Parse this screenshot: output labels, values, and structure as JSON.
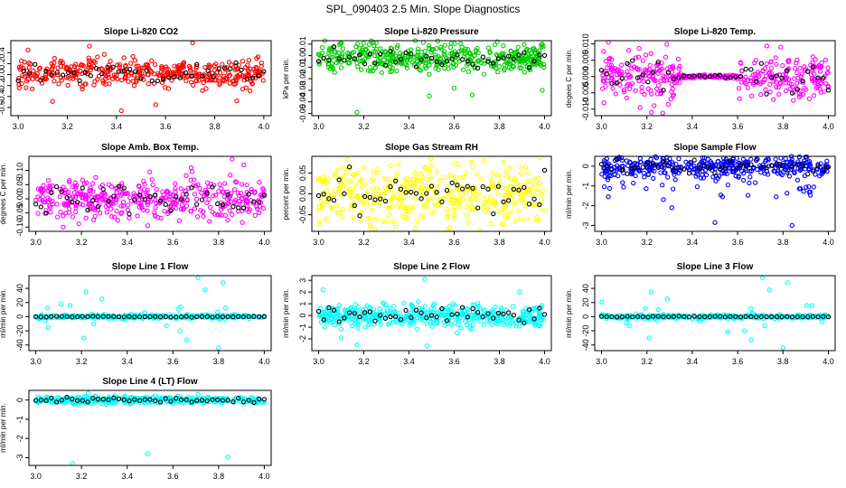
{
  "figure_title": "SPL_090403  2.5 Min. Slope Diagnostics",
  "colors": {
    "red": "#ff0000",
    "green": "#00cc00",
    "magenta": "#ff00ff",
    "yellow": "#ffff00",
    "blue": "#0000ff",
    "cyan": "#00ffff",
    "highlight": "#000000"
  },
  "chart_data": [
    {
      "type": "scatter",
      "title": "Slope Li-820 CO2",
      "ylabel": "Li.co ppm per min.",
      "color": "red",
      "xlim": [
        2.97,
        4.03
      ],
      "ylim": [
        -0.75,
        0.62
      ],
      "xticks": [
        "3.0",
        "3.2",
        "3.4",
        "3.6",
        "3.8",
        "4.0"
      ],
      "yticks": [
        -0.6,
        -0.4,
        -0.2,
        0.0,
        0.2,
        0.4
      ],
      "ytick_labels": [
        "-0.6",
        "-0.4",
        "-0.2",
        "0.0",
        "0.2",
        "0.4"
      ],
      "series_spec": {
        "center": 0.03,
        "spread": 0.17,
        "profile": "uniform",
        "points": 380
      },
      "outliers": [
        [
          3.29,
          0.52
        ],
        [
          3.71,
          0.58
        ],
        [
          3.42,
          -0.66
        ],
        [
          3.56,
          -0.55
        ],
        [
          3.14,
          -0.49
        ],
        [
          3.89,
          -0.48
        ],
        [
          3.04,
          0.45
        ]
      ]
    },
    {
      "type": "scatter",
      "title": "Slope Li-820 Pressure",
      "ylabel": "kPa per min.",
      "color": "green",
      "xlim": [
        2.97,
        4.03
      ],
      "ylim": [
        -0.052,
        0.013
      ],
      "xticks": [
        "3.0",
        "3.2",
        "3.4",
        "3.6",
        "3.8",
        "4.0"
      ],
      "yticks": [
        -0.05,
        -0.04,
        -0.03,
        -0.02,
        -0.01,
        0.0,
        0.01
      ],
      "ytick_labels": [
        "-0.05",
        "-0.04",
        "-0.03",
        "-0.02",
        "-0.01",
        "0.00",
        "0.01"
      ],
      "series_spec": {
        "center": -0.002,
        "spread": 0.008,
        "profile": "uniform",
        "points": 420
      },
      "outliers": [
        [
          3.17,
          -0.049
        ],
        [
          3.49,
          -0.035
        ],
        [
          3.68,
          -0.034
        ],
        [
          3.99,
          -0.03
        ],
        [
          3.99,
          0.01
        ],
        [
          3.6,
          -0.028
        ]
      ]
    },
    {
      "type": "scatter",
      "title": "Slope Li-820 Temp.",
      "ylabel": "degees C per min.",
      "color": "magenta",
      "xlim": [
        2.97,
        4.03
      ],
      "ylim": [
        -0.012,
        0.011
      ],
      "xticks": [
        "3.0",
        "3.2",
        "3.4",
        "3.6",
        "3.8",
        "4.0"
      ],
      "yticks": [
        -0.01,
        -0.005,
        0.0,
        0.005,
        0.01
      ],
      "ytick_labels": [
        "-0.010",
        "-0.005",
        "0.000",
        "0.005",
        "0.010"
      ],
      "series_spec": {
        "center": 0.0,
        "spread": 0.0045,
        "profile": "quiet-middle",
        "points": 400
      },
      "outliers": [
        [
          3.03,
          0.0105
        ],
        [
          3.12,
          0.008
        ],
        [
          3.22,
          -0.011
        ],
        [
          3.27,
          -0.0112
        ],
        [
          3.17,
          -0.0095
        ],
        [
          3.79,
          0.009
        ]
      ]
    },
    {
      "type": "scatter",
      "title": "Slope Amb. Box Temp.",
      "ylabel": "degrees C per min.",
      "color": "magenta",
      "xlim": [
        2.97,
        4.03
      ],
      "ylim": [
        -0.115,
        0.15
      ],
      "xticks": [
        "3.0",
        "3.2",
        "3.4",
        "3.6",
        "3.8",
        "4.0"
      ],
      "yticks": [
        -0.1,
        -0.05,
        0.0,
        0.05,
        0.1
      ],
      "ytick_labels": [
        "-0.10",
        "-0.05",
        "0.00",
        "0.05",
        "0.10"
      ],
      "series_spec": {
        "center": 0.0,
        "spread": 0.045,
        "profile": "uniform",
        "points": 400
      },
      "outliers": [
        [
          3.86,
          0.14
        ],
        [
          3.68,
          0.11
        ],
        [
          3.12,
          -0.1
        ],
        [
          3.91,
          0.12
        ],
        [
          3.49,
          -0.095
        ]
      ]
    },
    {
      "type": "scatter",
      "title": "Slope Gas Stream RH",
      "ylabel": "percent per min.",
      "color": "yellow",
      "xlim": [
        2.97,
        4.03
      ],
      "ylim": [
        -0.09,
        0.09
      ],
      "xticks": [
        "3.0",
        "3.2",
        "3.4",
        "3.6",
        "3.8",
        "4.0"
      ],
      "yticks": [
        -0.05,
        0.0,
        0.05
      ],
      "ytick_labels": [
        "-0.05",
        "0.00",
        "0.05"
      ],
      "series_spec": {
        "center": 0.0,
        "spread": 0.05,
        "profile": "uniform",
        "points": 420
      },
      "outliers": [
        [
          3.25,
          -0.085
        ],
        [
          3.73,
          0.08
        ],
        [
          3.58,
          -0.082
        ]
      ]
    },
    {
      "type": "scatter",
      "title": "Slope Sample Flow",
      "ylabel": "ml/min per min.",
      "color": "blue",
      "xlim": [
        2.97,
        4.03
      ],
      "ylim": [
        -3.3,
        0.5
      ],
      "xticks": [
        "3.0",
        "3.2",
        "3.4",
        "3.6",
        "3.8",
        "4.0"
      ],
      "yticks": [
        -3,
        -2,
        -1,
        0
      ],
      "ytick_labels": [
        "-3",
        "-2",
        "-1",
        "0"
      ],
      "series_spec": {
        "center": 0.0,
        "spread": 0.35,
        "profile": "neg-tail",
        "points": 420
      },
      "outliers": [
        [
          3.5,
          -2.85
        ],
        [
          3.84,
          -3.0
        ],
        [
          3.31,
          -2.1
        ],
        [
          3.03,
          -1.55
        ],
        [
          3.77,
          -1.55
        ],
        [
          3.92,
          -1.3
        ]
      ]
    },
    {
      "type": "scatter",
      "title": "Slope Line 1 Flow",
      "ylabel": "ml/min per min.",
      "color": "cyan",
      "xlim": [
        2.97,
        4.03
      ],
      "ylim": [
        -48,
        58
      ],
      "xticks": [
        "3.0",
        "3.2",
        "3.4",
        "3.6",
        "3.8",
        "4.0"
      ],
      "yticks": [
        -40,
        -20,
        0,
        20,
        40
      ],
      "ytick_labels": [
        "-40",
        "-20",
        "0",
        "20",
        "40"
      ],
      "series_spec": {
        "center": 0.0,
        "spread": 2.0,
        "profile": "spiky",
        "points": 300
      },
      "outliers": [
        [
          3.22,
          35
        ],
        [
          3.21,
          -30
        ],
        [
          3.71,
          55
        ],
        [
          3.82,
          48
        ],
        [
          3.8,
          -44
        ],
        [
          3.74,
          38
        ],
        [
          3.66,
          -33
        ],
        [
          3.29,
          25
        ],
        [
          3.63,
          -20
        ]
      ]
    },
    {
      "type": "scatter",
      "title": "Slope Line 2 Flow",
      "ylabel": "ml/min per min.",
      "color": "cyan",
      "xlim": [
        2.97,
        4.03
      ],
      "ylim": [
        -3.0,
        3.4
      ],
      "xticks": [
        "3.0",
        "3.2",
        "3.4",
        "3.6",
        "3.8",
        "4.0"
      ],
      "yticks": [
        -2,
        -1,
        0,
        1,
        2,
        3
      ],
      "ytick_labels": [
        "-2",
        "-1",
        "0",
        "1",
        "2",
        "3"
      ],
      "series_spec": {
        "center": 0.0,
        "spread": 0.65,
        "profile": "uniform",
        "points": 440
      },
      "outliers": [
        [
          3.47,
          3.1
        ],
        [
          3.17,
          -2.5
        ],
        [
          3.48,
          -2.6
        ],
        [
          3.02,
          2.2
        ],
        [
          3.89,
          2.0
        ],
        [
          3.1,
          -1.9
        ]
      ]
    },
    {
      "type": "scatter",
      "title": "Slope Line 3 Flow",
      "ylabel": "ml/min per min.",
      "color": "cyan",
      "xlim": [
        2.97,
        4.03
      ],
      "ylim": [
        -48,
        58
      ],
      "xticks": [
        "3.0",
        "3.2",
        "3.4",
        "3.6",
        "3.8",
        "4.0"
      ],
      "yticks": [
        -40,
        -20,
        0,
        20,
        40
      ],
      "ytick_labels": [
        "-40",
        "-20",
        "0",
        "20",
        "40"
      ],
      "series_spec": {
        "center": 0.0,
        "spread": 2.0,
        "profile": "spiky",
        "points": 300
      },
      "outliers": [
        [
          3.22,
          35
        ],
        [
          3.21,
          -30
        ],
        [
          3.71,
          55
        ],
        [
          3.82,
          48
        ],
        [
          3.8,
          -44
        ],
        [
          3.74,
          38
        ],
        [
          3.66,
          -33
        ],
        [
          3.29,
          25
        ],
        [
          3.63,
          -20
        ]
      ]
    },
    {
      "type": "scatter",
      "title": "Slope Line 4 (LT) Flow",
      "ylabel": "ml/min per min.",
      "color": "cyan",
      "xlim": [
        2.97,
        4.03
      ],
      "ylim": [
        -3.4,
        0.5
      ],
      "xticks": [
        "3.0",
        "3.2",
        "3.4",
        "3.6",
        "3.8",
        "4.0"
      ],
      "yticks": [
        -3,
        -2,
        -1,
        0
      ],
      "ytick_labels": [
        "-3",
        "-2",
        "-1",
        "0"
      ],
      "series_spec": {
        "center": 0.0,
        "spread": 0.12,
        "profile": "uniform",
        "points": 380
      },
      "outliers": [
        [
          3.16,
          -3.3
        ],
        [
          3.49,
          -2.8
        ],
        [
          3.84,
          -2.95
        ],
        [
          3.23,
          0.35
        ],
        [
          3.71,
          0.3
        ]
      ]
    }
  ]
}
